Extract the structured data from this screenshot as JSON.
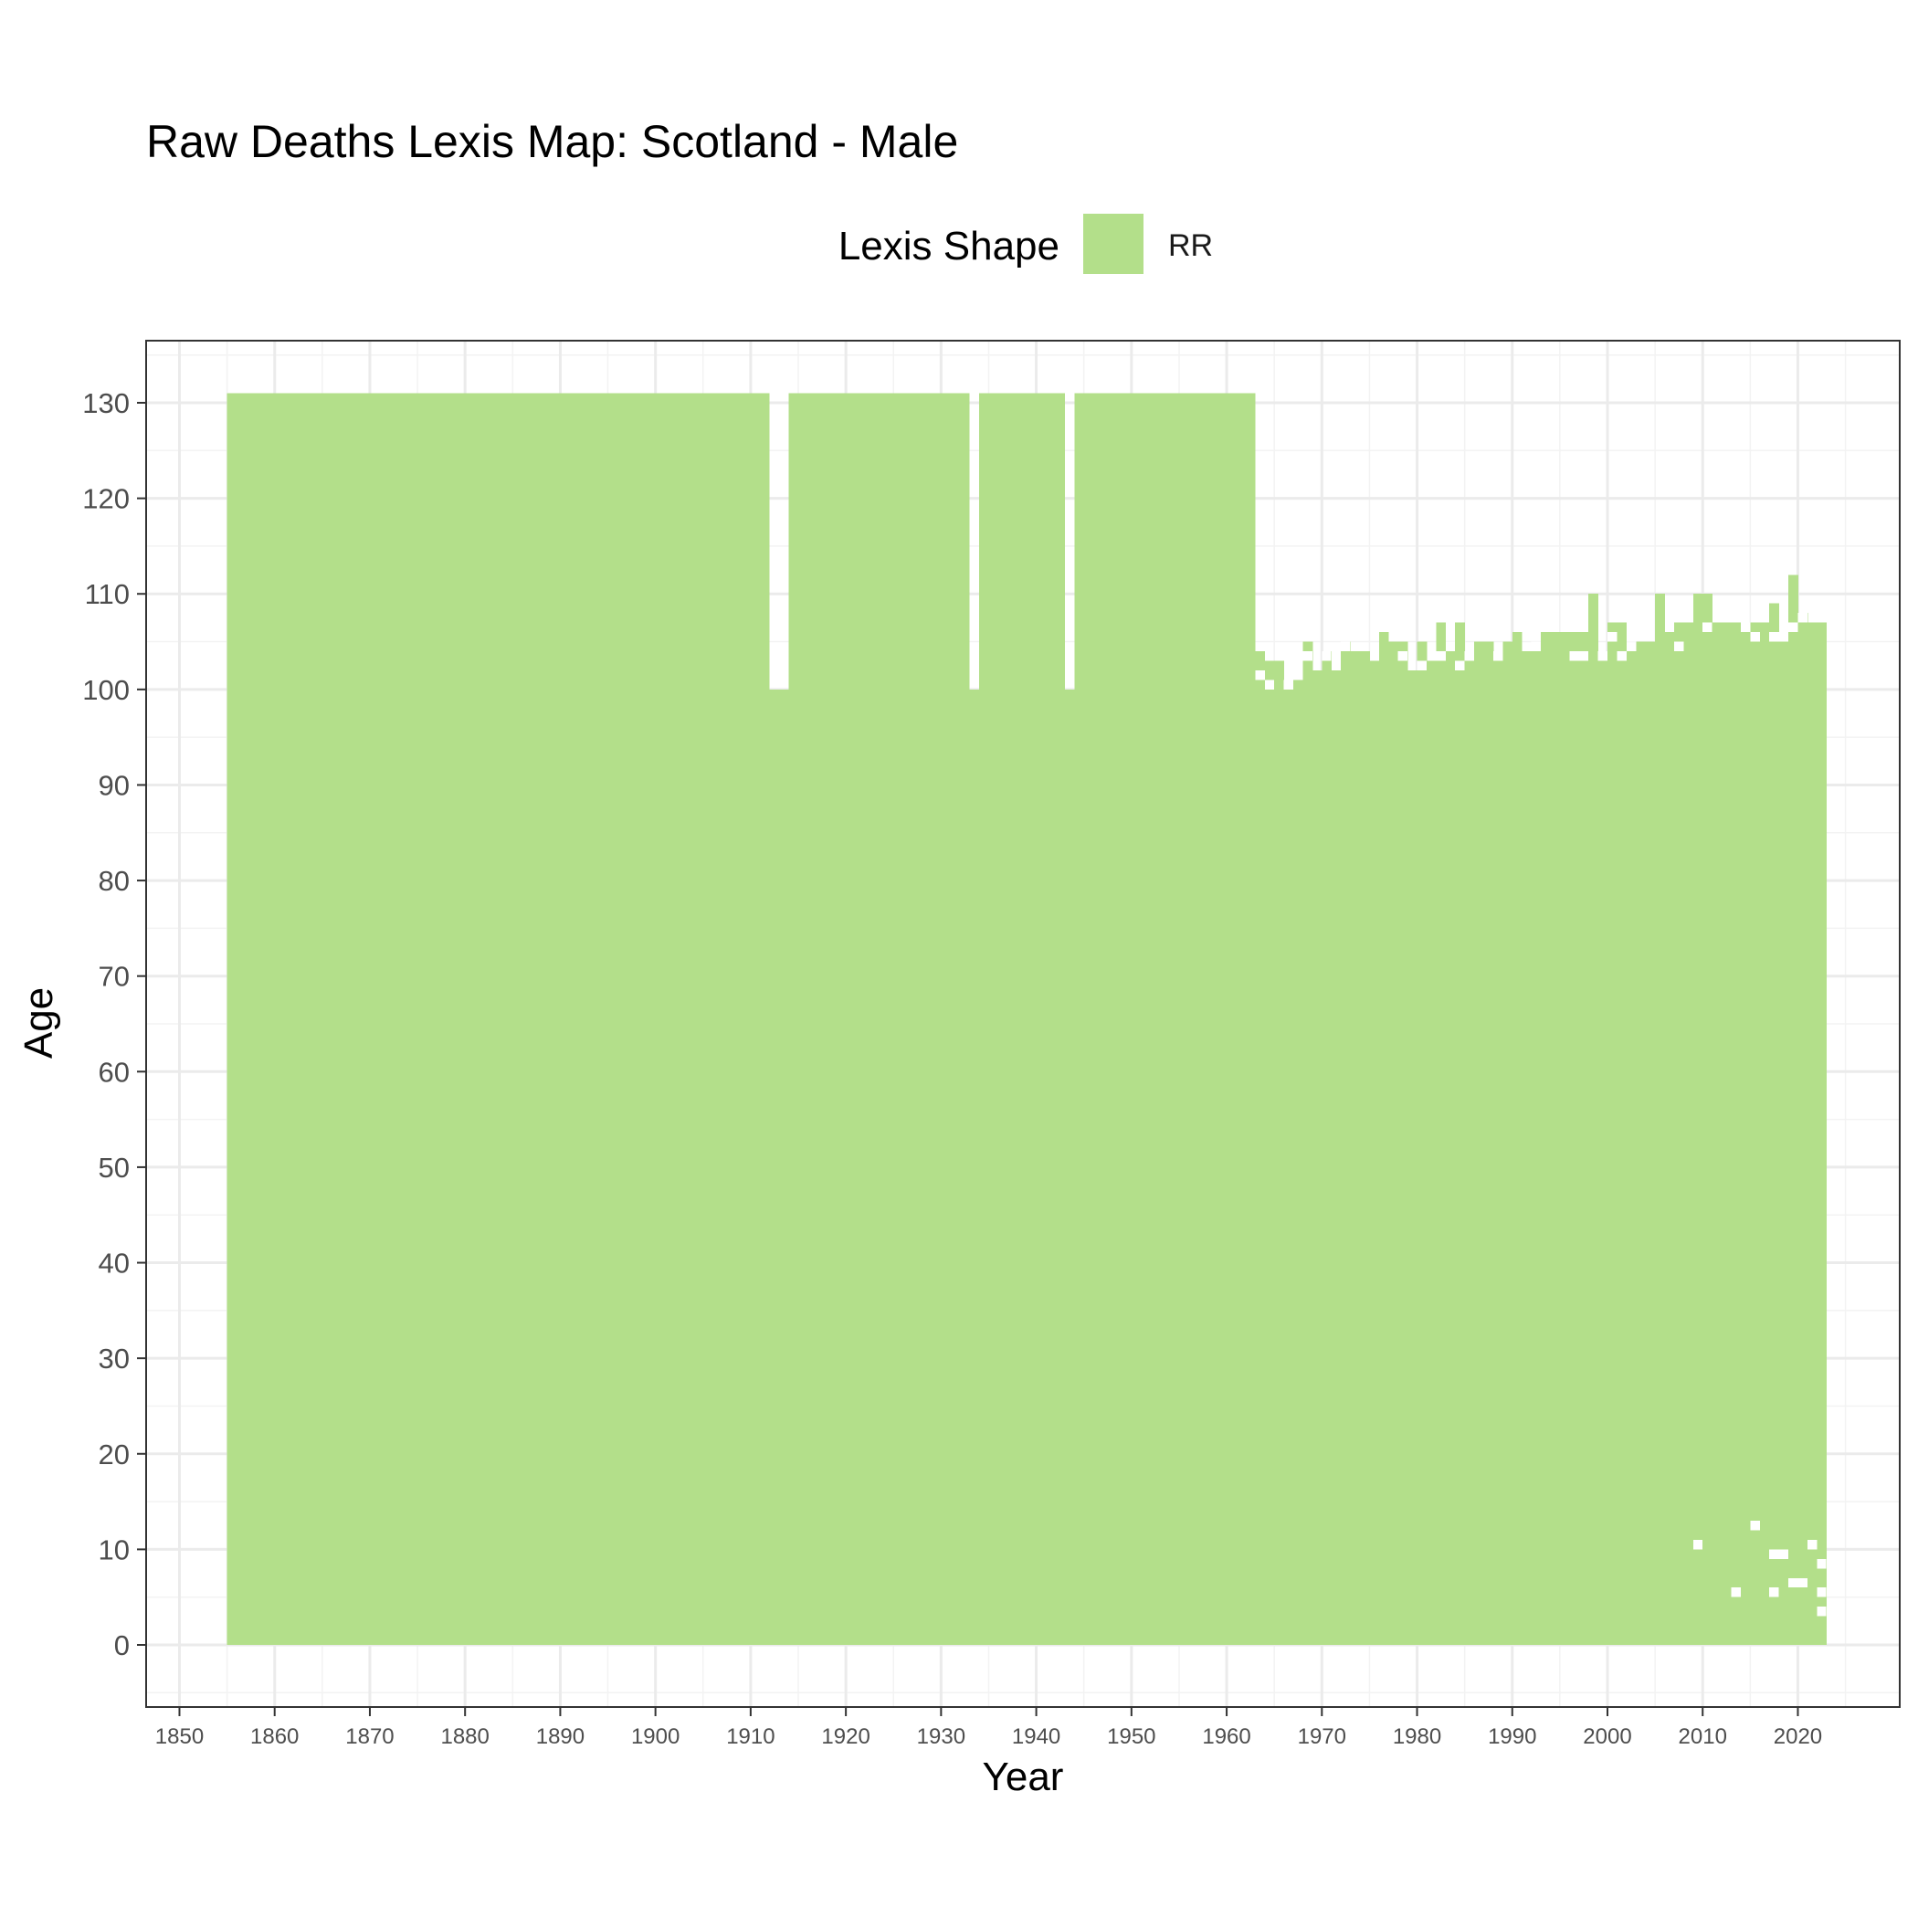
{
  "chart_data": {
    "type": "heatmap",
    "title": "Raw Deaths Lexis Map: Scotland - Male",
    "xlabel": "Year",
    "ylabel": "Age",
    "xlim": [
      1846.5,
      2030.7
    ],
    "ylim": [
      -6.5,
      136.5
    ],
    "x_ticks": [
      1850,
      1860,
      1870,
      1880,
      1890,
      1900,
      1910,
      1920,
      1930,
      1940,
      1950,
      1960,
      1970,
      1980,
      1990,
      2000,
      2010,
      2020
    ],
    "y_ticks": [
      0,
      10,
      20,
      30,
      40,
      50,
      60,
      70,
      80,
      90,
      100,
      110,
      120,
      130
    ],
    "grid": true,
    "legend": {
      "title": "Lexis Shape",
      "placement": "top",
      "entries": [
        {
          "label": "RR",
          "color": "#b3df8a"
        }
      ]
    },
    "fill_color": "#b3df8a",
    "cell_size": {
      "years": 1,
      "ages": 1
    },
    "filled_blocks": [
      {
        "year_start": 1855,
        "year_end": 1912,
        "age_min": 0,
        "age_max": 131
      },
      {
        "year_start": 1912,
        "year_end": 1914,
        "age_min": 0,
        "age_max": 100
      },
      {
        "year_start": 1914,
        "year_end": 1933,
        "age_min": 0,
        "age_max": 131
      },
      {
        "year_start": 1933,
        "year_end": 1934,
        "age_min": 0,
        "age_max": 100
      },
      {
        "year_start": 1934,
        "year_end": 1943,
        "age_min": 0,
        "age_max": 131
      },
      {
        "year_start": 1943,
        "year_end": 1944,
        "age_min": 0,
        "age_max": 100
      },
      {
        "year_start": 1944,
        "year_end": 1963,
        "age_min": 0,
        "age_max": 131
      }
    ],
    "max_age_by_year": {
      "years": [
        1963,
        1964,
        1965,
        1966,
        1967,
        1968,
        1969,
        1970,
        1971,
        1972,
        1973,
        1974,
        1975,
        1976,
        1977,
        1978,
        1979,
        1980,
        1981,
        1982,
        1983,
        1984,
        1985,
        1986,
        1987,
        1988,
        1989,
        1990,
        1991,
        1992,
        1993,
        1994,
        1995,
        1996,
        1997,
        1998,
        1999,
        2000,
        2001,
        2002,
        2003,
        2004,
        2005,
        2006,
        2007,
        2008,
        2009,
        2010,
        2011,
        2012,
        2013,
        2014,
        2015,
        2016,
        2017,
        2018,
        2019,
        2020,
        2021,
        2022
      ],
      "max_age": [
        104,
        103,
        103,
        101,
        102,
        105,
        102,
        104,
        102,
        105,
        104,
        104,
        103,
        106,
        105,
        105,
        102,
        105,
        103,
        107,
        105,
        107,
        104,
        105,
        105,
        104,
        105,
        106,
        104,
        105,
        106,
        106,
        106,
        106,
        106,
        110,
        104,
        107,
        107,
        104,
        105,
        105,
        110,
        106,
        107,
        107,
        110,
        110,
        107,
        107,
        107,
        107,
        107,
        107,
        109,
        106,
        112,
        108,
        107,
        107
      ]
    },
    "missing_cells": [
      {
        "year": 1963,
        "age": 101
      },
      {
        "year": 1964,
        "age": 100
      },
      {
        "year": 1966,
        "age": 100
      },
      {
        "year": 1967,
        "age": 101
      },
      {
        "year": 1968,
        "age": 103
      },
      {
        "year": 1970,
        "age": 103
      },
      {
        "year": 1972,
        "age": 104
      },
      {
        "year": 1978,
        "age": 103
      },
      {
        "year": 1980,
        "age": 102
      },
      {
        "year": 1982,
        "age": 103
      },
      {
        "year": 1983,
        "age": 104
      },
      {
        "year": 1984,
        "age": 102
      },
      {
        "year": 1985,
        "age": 103
      },
      {
        "year": 1988,
        "age": 103
      },
      {
        "year": 1992,
        "age": 104
      },
      {
        "year": 1996,
        "age": 103
      },
      {
        "year": 1997,
        "age": 103
      },
      {
        "year": 1999,
        "age": 103
      },
      {
        "year": 2000,
        "age": 105
      },
      {
        "year": 2001,
        "age": 103
      },
      {
        "year": 2002,
        "age": 105
      },
      {
        "year": 2007,
        "age": 104
      },
      {
        "year": 2010,
        "age": 106
      },
      {
        "year": 2014,
        "age": 106
      },
      {
        "year": 2015,
        "age": 105
      },
      {
        "year": 2017,
        "age": 105
      },
      {
        "year": 2018,
        "age": 105
      },
      {
        "year": 2019,
        "age": 106
      },
      {
        "year": 2020,
        "age": 107
      },
      {
        "year": 2009,
        "age": 10
      },
      {
        "year": 2013,
        "age": 5
      },
      {
        "year": 2015,
        "age": 12
      },
      {
        "year": 2017,
        "age": 5
      },
      {
        "year": 2017,
        "age": 9
      },
      {
        "year": 2018,
        "age": 9
      },
      {
        "year": 2019,
        "age": 6
      },
      {
        "year": 2020,
        "age": 6
      },
      {
        "year": 2021,
        "age": 10
      },
      {
        "year": 2022,
        "age": 8
      },
      {
        "year": 2022,
        "age": 5
      },
      {
        "year": 2022,
        "age": 3
      }
    ]
  }
}
